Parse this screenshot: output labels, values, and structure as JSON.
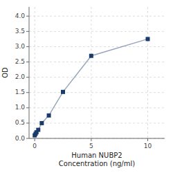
{
  "chart_data": {
    "type": "line",
    "xlabel": "Human NUBP2\nConcentration (ng/ml)",
    "ylabel": "OD",
    "x": [
      0,
      0.078,
      0.156,
      0.313,
      0.625,
      1.25,
      2.5,
      5,
      10
    ],
    "series": [
      {
        "color": "#1a3a6b",
        "marker": "square",
        "values": [
          0.1,
          0.15,
          0.2,
          0.28,
          0.5,
          0.75,
          1.52,
          2.7,
          3.25
        ]
      }
    ],
    "xlim": [
      -0.5,
      11.5
    ],
    "ylim": [
      0,
      4.3
    ],
    "xticks": [
      0,
      5,
      10
    ],
    "yticks": [
      {
        "value": 0,
        "label": "0.0"
      },
      0.5,
      {
        "value": 1.0,
        "label": "1.0"
      },
      1.5,
      {
        "value": 2.0,
        "label": "2.0"
      },
      2.5,
      {
        "value": 3.0,
        "label": "3.0"
      },
      3.5,
      {
        "value": 4.0,
        "label": "4.0"
      }
    ],
    "grid": true
  }
}
